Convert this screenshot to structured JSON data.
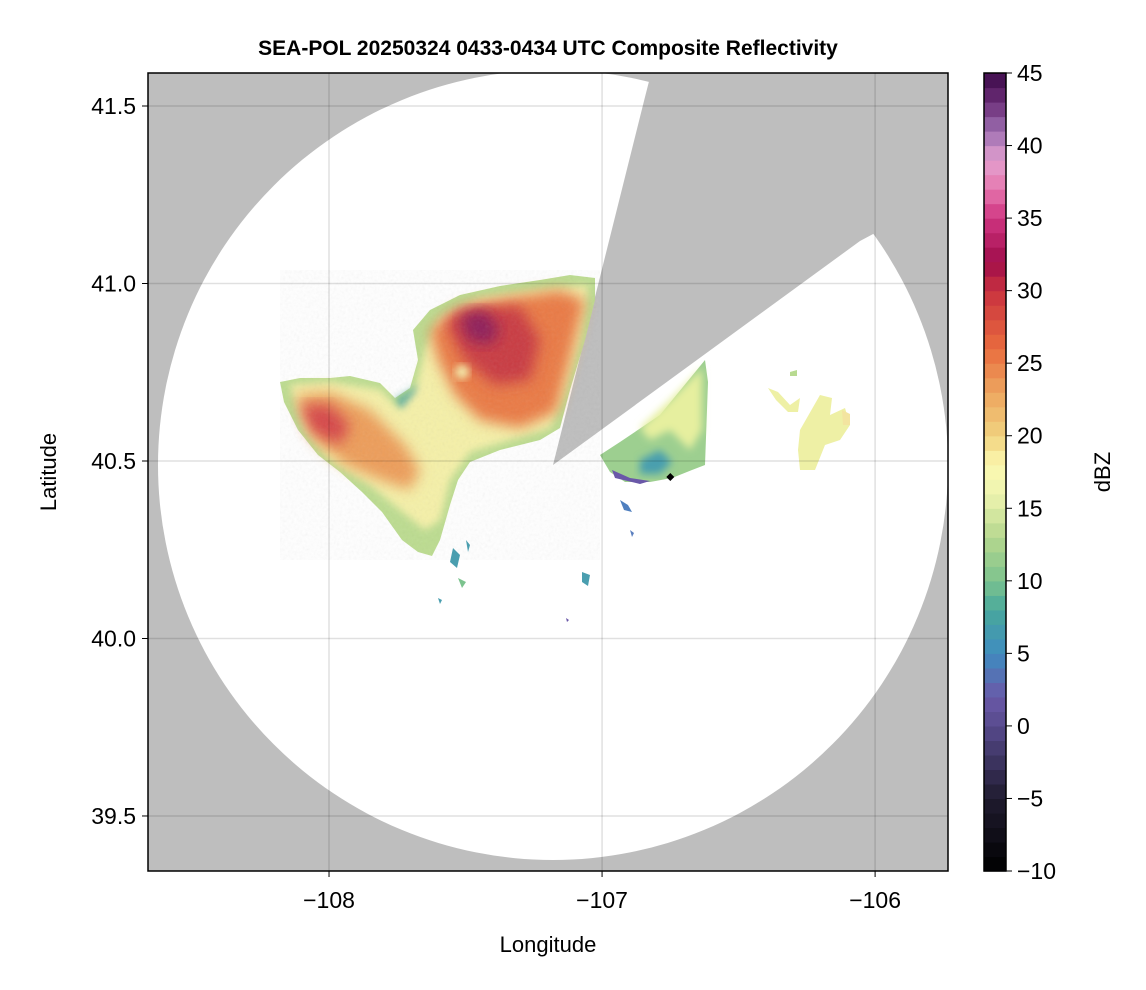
{
  "chart_data": {
    "type": "heatmap",
    "title": "SEA-POL 20250324 0433-0434 UTC Composite Reflectivity",
    "xlabel": "Longitude",
    "ylabel": "Latitude",
    "xlim": [
      -108.663,
      -105.733
    ],
    "ylim": [
      39.345,
      41.593
    ],
    "xticks": [
      -108,
      -107,
      -106
    ],
    "xtick_labels": [
      "−108",
      "−107",
      "−106"
    ],
    "yticks": [
      39.5,
      40.0,
      40.5,
      41.0,
      41.5
    ],
    "ytick_labels": [
      "39.5",
      "40.0",
      "40.5",
      "41.0",
      "41.5"
    ],
    "grid": true,
    "radar_center": {
      "lon": -107.18,
      "lat": 40.49
    },
    "blocked_sector_azimuths_deg": [
      14,
      56
    ],
    "marker": {
      "lon": -106.75,
      "lat": 40.455,
      "shape": "diamond"
    },
    "colorbar": {
      "label": "dBZ",
      "range": [
        -10,
        45
      ],
      "step": 1,
      "ticks": [
        -10,
        -5,
        0,
        5,
        10,
        15,
        20,
        25,
        30,
        35,
        40,
        45
      ],
      "tick_labels": [
        "−10",
        "−5",
        "0",
        "5",
        "10",
        "15",
        "20",
        "25",
        "30",
        "35",
        "40",
        "45"
      ],
      "colormap_anchors": [
        [
          -10,
          "#000000"
        ],
        [
          -5,
          "#1f1b2f"
        ],
        [
          0,
          "#574a8c"
        ],
        [
          2,
          "#6a58a8"
        ],
        [
          5,
          "#3f8cc0"
        ],
        [
          8,
          "#48a89c"
        ],
        [
          10,
          "#7cc38e"
        ],
        [
          13,
          "#b5d78e"
        ],
        [
          16,
          "#eef4b0"
        ],
        [
          18,
          "#fbf8b0"
        ],
        [
          20,
          "#f1d37f"
        ],
        [
          23,
          "#eda55f"
        ],
        [
          26,
          "#e96c3e"
        ],
        [
          30,
          "#c9323f"
        ],
        [
          32,
          "#a00d4b"
        ],
        [
          35,
          "#cf3581"
        ],
        [
          37,
          "#e676ae"
        ],
        [
          39,
          "#e3a0cf"
        ],
        [
          41,
          "#9d6fb1"
        ],
        [
          43,
          "#6c2e78"
        ],
        [
          45,
          "#3c0a49"
        ]
      ]
    }
  },
  "colors": {
    "background_missing": "#bebebe",
    "in_range": "#ffffff"
  }
}
